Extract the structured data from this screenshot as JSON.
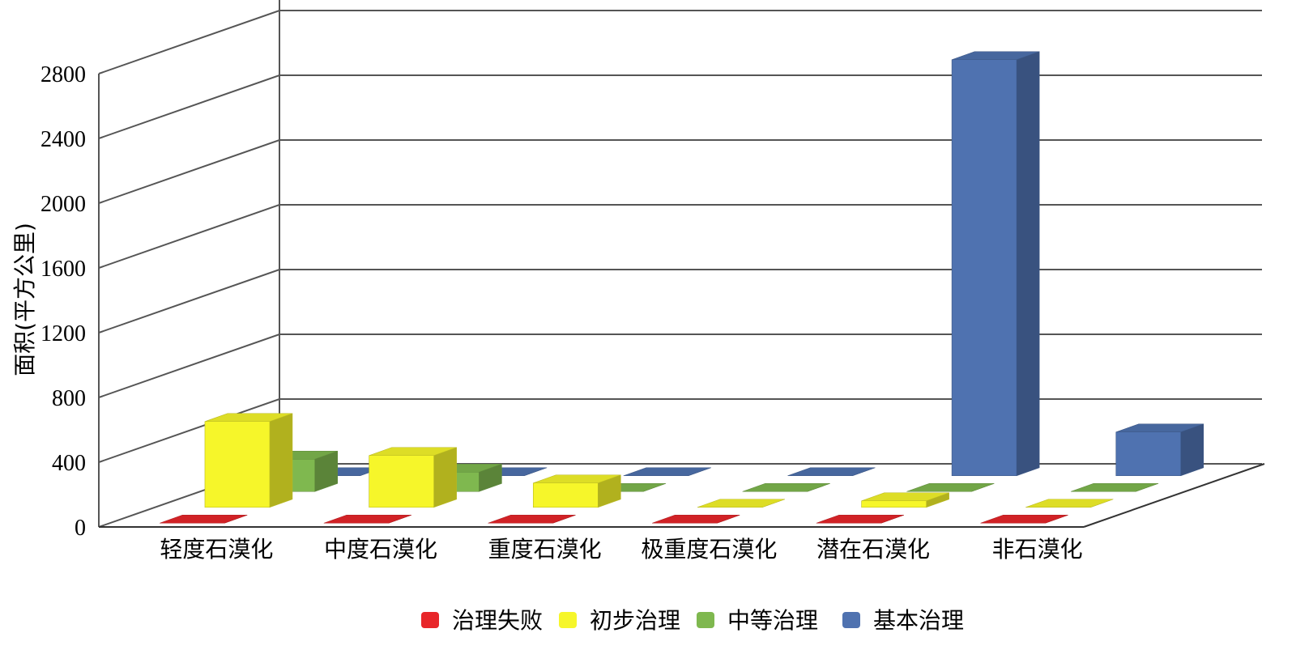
{
  "chart_data": {
    "type": "bar",
    "ylabel": "面积(平方公里)",
    "ylim": [
      0,
      2800
    ],
    "yticks": [
      0,
      400,
      800,
      1200,
      1600,
      2000,
      2400,
      2800
    ],
    "grid": true,
    "legend_position": "bottom",
    "categories": [
      "轻度石漠化",
      "中度石漠化",
      "重度石漠化",
      "极重度石漠化",
      "潜在石漠化",
      "非石漠化"
    ],
    "series": [
      {
        "name": "治理失败",
        "color": "#e8262a",
        "values": [
          0,
          0,
          0,
          0,
          0,
          0
        ]
      },
      {
        "name": "初步治理",
        "color": "#f6f62a",
        "values": [
          530,
          320,
          150,
          0,
          40,
          0
        ]
      },
      {
        "name": "中等治理",
        "color": "#7fb84f",
        "values": [
          200,
          120,
          0,
          0,
          0,
          0
        ]
      },
      {
        "name": "基本治理",
        "color": "#4f72b0",
        "values": [
          0,
          0,
          0,
          0,
          2570,
          270
        ]
      }
    ]
  }
}
